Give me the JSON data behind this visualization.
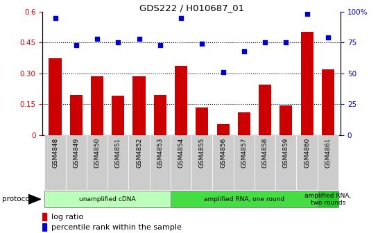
{
  "title": "GDS222 / H010687_01",
  "categories": [
    "GSM4848",
    "GSM4849",
    "GSM4850",
    "GSM4851",
    "GSM4852",
    "GSM4853",
    "GSM4854",
    "GSM4855",
    "GSM4856",
    "GSM4857",
    "GSM4858",
    "GSM4859",
    "GSM4860",
    "GSM4861"
  ],
  "log_ratio": [
    0.375,
    0.195,
    0.285,
    0.19,
    0.285,
    0.195,
    0.335,
    0.135,
    0.055,
    0.11,
    0.245,
    0.145,
    0.5,
    0.32
  ],
  "percentile_pct": [
    95,
    73,
    78,
    75,
    78,
    73,
    95,
    74,
    51,
    68,
    75,
    75,
    98,
    79
  ],
  "bar_color": "#cc0000",
  "dot_color": "#0000cc",
  "ylim_left": [
    0,
    0.6
  ],
  "ylim_right": [
    0,
    100
  ],
  "yticks_left": [
    0,
    0.15,
    0.3,
    0.45,
    0.6
  ],
  "ytick_labels_left": [
    "0",
    "0.15",
    "0.30",
    "0.45",
    "0.6"
  ],
  "yticks_right": [
    0,
    25,
    50,
    75,
    100
  ],
  "ytick_labels_right": [
    "0",
    "25",
    "50",
    "75",
    "100%"
  ],
  "protocol_groups": [
    {
      "label": "unamplified cDNA",
      "start": 0,
      "end": 5,
      "color": "#bbffbb"
    },
    {
      "label": "amplified RNA, one round",
      "start": 6,
      "end": 12,
      "color": "#44dd44"
    },
    {
      "label": "amplified RNA,\ntwo rounds",
      "start": 13,
      "end": 13,
      "color": "#22cc22"
    }
  ],
  "protocol_label": "protocol",
  "legend_bar_label": "log ratio",
  "legend_dot_label": "percentile rank within the sample",
  "tick_label_color_left": "#cc0000",
  "tick_label_color_right": "#0000cc",
  "xticklabel_bg": "#cccccc"
}
